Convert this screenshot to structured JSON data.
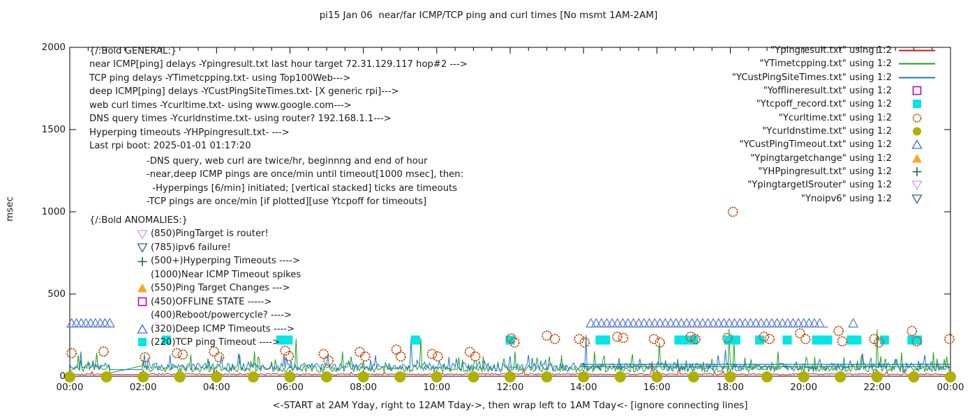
{
  "chart_data": {
    "type": "line",
    "title": "pi15 Jan 06  near/far ICMP/TCP ping and curl times [No msmt 1AM-2AM]",
    "ylabel": "msec",
    "xlabel_caption": "<-START at 2AM Yday, right to 12AM Tday->, then wrap left to 1AM Tday<- [ignore connecting lines]",
    "x_tick_labels": [
      "00:00",
      "02:00",
      "04:00",
      "06:00",
      "08:00",
      "10:00",
      "12:00",
      "14:00",
      "16:00",
      "18:00",
      "20:00",
      "22:00",
      "00:00"
    ],
    "x_range_hours": [
      0,
      24
    ],
    "y_ticks": [
      0,
      500,
      1000,
      1500,
      2000
    ],
    "y_range": [
      0,
      2000
    ],
    "grid": false,
    "legend_position": "inside top-right",
    "colors": {
      "red": "#e01010",
      "green": "#1ca01c",
      "blue": "#1874cd",
      "magenta": "#bd00bd",
      "cyan": "#00e5e5",
      "orangebrown": "#c05010",
      "olive": "#b0b000",
      "bluetri": "#4169e1",
      "orange": "#ffa520",
      "darkgreen": "#1a6b4a",
      "violet": "#cc99ff",
      "steel": "#31647f",
      "axis": "#000000"
    },
    "no_measurement_gap_hours": [
      1.083,
      2.0
    ],
    "line_series": [
      {
        "name": "near ICMP ping delay (Ypingresult.txt)",
        "color": "red",
        "seed": 101,
        "base": 8,
        "jitter": 8,
        "spike_prob": 0.02,
        "spike_amp": 25,
        "gap": [
          1.083,
          2.0,
          10,
          10
        ],
        "spikes": [
          [
            12.35,
            45
          ],
          [
            15.85,
            88
          ],
          [
            16.6,
            58
          ]
        ]
      },
      {
        "name": "TCP ping delay (YTimetcpping.txt)",
        "color": "green",
        "seed": 202,
        "base": 25,
        "jitter": 40,
        "spike_prob": 0.15,
        "spike_amp": 90,
        "gap": [
          1.083,
          2.0,
          18,
          65
        ],
        "spikes": [
          [
            2.07,
            68
          ],
          [
            5.02,
            150
          ],
          [
            6.17,
            228
          ],
          [
            7.42,
            150
          ],
          [
            9.55,
            232
          ],
          [
            12.12,
            150
          ],
          [
            14.3,
            150
          ],
          [
            16.05,
            205
          ],
          [
            17.95,
            288
          ],
          [
            18.1,
            205
          ],
          [
            19.3,
            150
          ],
          [
            22.0,
            282
          ],
          [
            22.67,
            145
          ],
          [
            23.9,
            120
          ]
        ],
        "flat_segment": [
          13.9,
          24,
          58
        ]
      },
      {
        "name": "deep ICMP ping delay (YCustPingSiteTimes.txt)",
        "color": "blue",
        "seed": 303,
        "base": 35,
        "jitter": 45,
        "spike_prob": 0.08,
        "spike_amp": 60,
        "gap": [
          1.083,
          2.0,
          40,
          40
        ],
        "spikes": [
          [
            0.3,
            150
          ],
          [
            4.6,
            140
          ],
          [
            9.3,
            230
          ],
          [
            14.05,
            250
          ],
          [
            17.88,
            160
          ],
          [
            21.6,
            140
          ],
          [
            23.3,
            130
          ]
        ],
        "flat_segment": [
          13.9,
          24,
          72
        ]
      }
    ],
    "point_series": {
      "curl_times_circles": {
        "marker": "circle-open",
        "color": "orangebrown",
        "points": [
          [
            0.05,
            140
          ],
          [
            0.92,
            150
          ],
          [
            2.05,
            115
          ],
          [
            2.92,
            140
          ],
          [
            3.08,
            132
          ],
          [
            3.93,
            150
          ],
          [
            4.07,
            115
          ],
          [
            5.87,
            155
          ],
          [
            5.97,
            122
          ],
          [
            6.92,
            135
          ],
          [
            7.05,
            95
          ],
          [
            7.9,
            148
          ],
          [
            8.05,
            120
          ],
          [
            8.9,
            162
          ],
          [
            9.02,
            120
          ],
          [
            9.87,
            135
          ],
          [
            10.03,
            120
          ],
          [
            10.9,
            148
          ],
          [
            11.05,
            120
          ],
          [
            12.03,
            230
          ],
          [
            12.12,
            205
          ],
          [
            13.0,
            247
          ],
          [
            13.22,
            226
          ],
          [
            13.88,
            226
          ],
          [
            14.03,
            205
          ],
          [
            14.92,
            240
          ],
          [
            15.08,
            233
          ],
          [
            15.92,
            226
          ],
          [
            16.08,
            205
          ],
          [
            16.92,
            240
          ],
          [
            17.05,
            226
          ],
          [
            17.92,
            233
          ],
          [
            18.07,
            1000
          ],
          [
            18.92,
            240
          ],
          [
            19.07,
            226
          ],
          [
            19.9,
            261
          ],
          [
            20.05,
            226
          ],
          [
            20.95,
            275
          ],
          [
            21.05,
            212
          ],
          [
            21.92,
            226
          ],
          [
            22.05,
            205
          ],
          [
            22.95,
            275
          ],
          [
            23.08,
            212
          ],
          [
            23.97,
            226
          ]
        ]
      },
      "dns_times_circles": {
        "marker": "circle-filled",
        "color": "olive",
        "value": 0,
        "hours": [
          0,
          1,
          2,
          3,
          4,
          5,
          6,
          7,
          8,
          9,
          10,
          11,
          12,
          13,
          14,
          15,
          16,
          17,
          18,
          19,
          20,
          21,
          22,
          23,
          24
        ]
      },
      "tcp_timeout_squares": {
        "marker": "square-filled",
        "color": "cyan",
        "value": 220,
        "times": [
          2.63,
          5.75,
          5.95,
          9.42,
          12.0,
          14.45,
          14.6,
          16.6,
          16.75,
          17.0,
          17.95,
          18.15,
          18.8,
          19.55,
          20.35,
          20.5,
          20.65,
          21.3,
          21.45,
          22.2,
          22.95,
          23.1
        ]
      },
      "deep_icmp_timeout_triangles": {
        "marker": "triangle-up-open",
        "color": "bluetri",
        "value": 320,
        "rows": [
          {
            "from": 0.05,
            "to": 1.1,
            "step": 0.13
          },
          {
            "from": 14.2,
            "to": 20.55,
            "step": 0.145
          }
        ],
        "singles": [
          21.35
        ]
      }
    }
  },
  "legend": {
    "items": [
      {
        "label": "\"Ypingresult.txt\" using 1:2",
        "marker": "line",
        "color": "red"
      },
      {
        "label": "\"YTimetcpping.txt\" using 1:2",
        "marker": "line",
        "color": "green"
      },
      {
        "label": "\"YCustPingSiteTimes.txt\" using 1:2",
        "marker": "line",
        "color": "blue"
      },
      {
        "label": "\"Yofflineresult.txt\" using 1:2",
        "marker": "square-open",
        "color": "magenta"
      },
      {
        "label": "\"Ytcpoff_record.txt\" using 1:2",
        "marker": "square-filled",
        "color": "cyan"
      },
      {
        "label": "\"Ycurltime.txt\" using 1:2",
        "marker": "circle-open",
        "color": "orangebrown"
      },
      {
        "label": "\"Ycurldnstime.txt\" using 1:2",
        "marker": "circle-filled",
        "color": "olive"
      },
      {
        "label": "\"YCustPingTimeout.txt\" using 1:2",
        "marker": "triangle-up-open",
        "color": "bluetri"
      },
      {
        "label": "\"Ypingtargetchange\" using 1:2",
        "marker": "triangle-up-filled",
        "color": "orange"
      },
      {
        "label": "\"YHPpingresult.txt\" using 1:2",
        "marker": "plus",
        "color": "darkgreen"
      },
      {
        "label": "\"YpingtargetISrouter\" using 1:2",
        "marker": "triangle-down-open",
        "color": "violet"
      },
      {
        "label": "\"Ynoipv6\" using 1:2",
        "marker": "triangle-down-open",
        "color": "steel"
      }
    ]
  },
  "annotations": {
    "general_lines": [
      "{/:Bold GENERAL:}",
      "near ICMP[ping] delays -Ypingresult.txt last hour target 72.31.129.117 hop#2 --->",
      "TCP ping delays -YTimetcpping.txt- using Top100Web--->",
      "deep ICMP[ping] delays -YCustPingSiteTimes.txt- [X generic rpi]--->",
      "web curl times -Ycurltime.txt- using www.google.com--->",
      "DNS query times -Ycurldnstime.txt- using router? 192.168.1.1--->",
      "Hyperping timeouts -YHPpingresult.txt- --->",
      "Last rpi boot: 2025-01-01 01:17:20"
    ],
    "notes_lines": [
      "-DNS query, web curl are twice/hr, beginnng and end of hour",
      "-near,deep ICMP pings are once/min until timeout[1000 msec], then:",
      "  -Hyperpings [6/min] initiated; [vertical stacked] ticks are timeouts",
      "-TCP pings are once/min [if plotted][use Ytcpoff for timeouts]"
    ],
    "anomalies_header": "{/:Bold ANOMALIES:}",
    "anomalies_items": [
      {
        "marker": "triangle-down-open",
        "color": "violet",
        "text": "(850)PingTarget is router!"
      },
      {
        "marker": "triangle-down-open",
        "color": "steel",
        "text": "(785)ipv6 failure!"
      },
      {
        "marker": "plus",
        "color": "darkgreen",
        "text": "(500+)Hyperping Timeouts ---->"
      },
      {
        "marker": null,
        "color": null,
        "text": "(1000)Near ICMP Timeout spikes"
      },
      {
        "marker": "triangle-up-filled",
        "color": "orange",
        "text": "(550)Ping Target Changes --->"
      },
      {
        "marker": "square-open",
        "color": "magenta",
        "text": "(450)OFFLINE STATE ----->"
      },
      {
        "marker": null,
        "color": null,
        "text": "(400)Reboot/powercycle? ---->"
      },
      {
        "marker": "triangle-up-open",
        "color": "bluetri",
        "text": "(320)Deep ICMP Timeouts ---->"
      },
      {
        "marker": "square-filled",
        "color": "cyan",
        "text": "(220)TCP ping Timeout ---->"
      }
    ]
  }
}
